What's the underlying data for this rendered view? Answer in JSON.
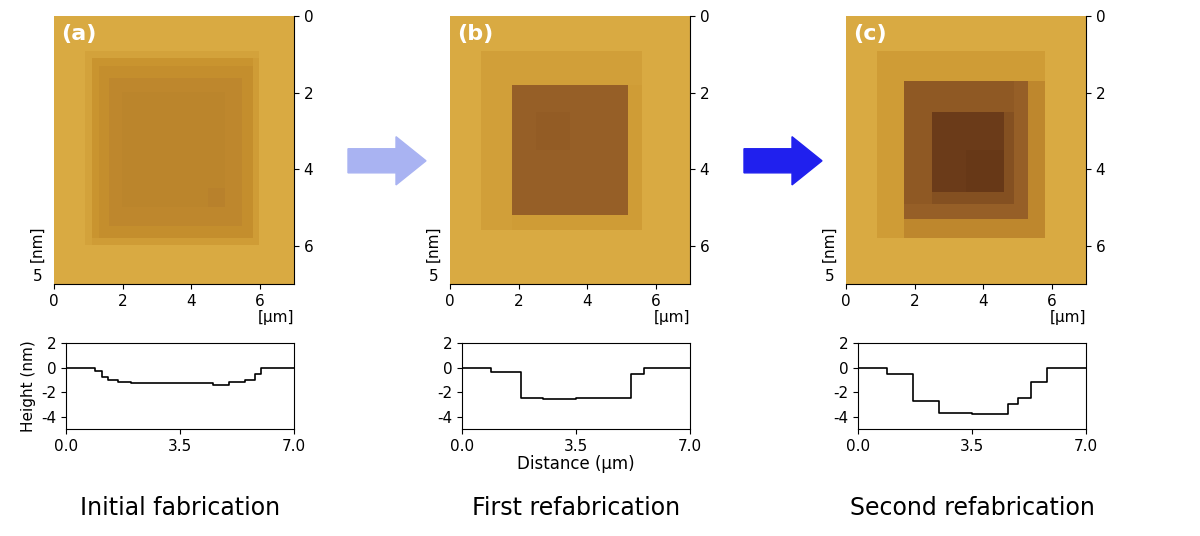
{
  "chart_data": [
    {
      "type": "line",
      "panel": "(a)",
      "caption": "Initial fabrication",
      "image": {
        "type": "heatmap",
        "xlim": [
          0,
          7
        ],
        "xticks": [
          0,
          2,
          4,
          6
        ],
        "x_label": "[µm]",
        "ylim": [
          7,
          0
        ],
        "yticks": [
          0,
          2,
          4,
          6
        ],
        "z_label": "[nm]",
        "zticks": [
          5
        ]
      },
      "y_label": "Height (nm)",
      "x": [
        0,
        0.9,
        1.1,
        1.3,
        1.6,
        2.0,
        2.5,
        3.0,
        3.5,
        4.0,
        4.5,
        5.0,
        5.5,
        5.8,
        6.0,
        7.0
      ],
      "values": [
        0,
        -0.3,
        -0.8,
        -1.0,
        -1.2,
        -1.3,
        -1.3,
        -1.3,
        -1.3,
        -1.3,
        -1.4,
        -1.2,
        -1.0,
        -0.5,
        0,
        0
      ],
      "xlim": [
        0,
        7
      ],
      "xticks": [
        {
          "value": 0,
          "label": "0.0"
        },
        {
          "value": 3.5,
          "label": "3.5"
        },
        {
          "value": 7,
          "label": "7.0"
        }
      ],
      "ylim": [
        -5,
        2
      ],
      "yticks": [
        -4,
        -2,
        0,
        2
      ],
      "color": "#000000"
    },
    {
      "type": "line",
      "panel": "(b)",
      "caption": "First refabrication",
      "image": {
        "type": "heatmap",
        "xlim": [
          0,
          7
        ],
        "xticks": [
          0,
          2,
          4,
          6
        ],
        "x_label": "[µm]",
        "ylim": [
          7,
          0
        ],
        "yticks": [
          0,
          2,
          4,
          6
        ],
        "z_label": "[nm]",
        "zticks": [
          5
        ]
      },
      "x_label": "Distance (µm)",
      "x": [
        0,
        0.9,
        1.8,
        2.5,
        3.5,
        4.5,
        5.2,
        5.6,
        7.0
      ],
      "values": [
        0,
        -0.4,
        -2.5,
        -2.6,
        -2.5,
        -2.5,
        -0.5,
        0,
        0
      ],
      "xlim": [
        0,
        7
      ],
      "xticks": [
        {
          "value": 0,
          "label": "0.0"
        },
        {
          "value": 3.5,
          "label": "3.5"
        },
        {
          "value": 7,
          "label": "7.0"
        }
      ],
      "ylim": [
        -5,
        2
      ],
      "yticks": [
        -4,
        -2,
        0,
        2
      ],
      "color": "#000000"
    },
    {
      "type": "line",
      "panel": "(c)",
      "caption": "Second refabrication",
      "image": {
        "type": "heatmap",
        "xlim": [
          0,
          7
        ],
        "xticks": [
          0,
          2,
          4,
          6
        ],
        "x_label": "[µm]",
        "ylim": [
          7,
          0
        ],
        "yticks": [
          0,
          2,
          4,
          6
        ],
        "z_label": "[nm]",
        "zticks": [
          5
        ]
      },
      "x": [
        0,
        0.9,
        1.7,
        2.5,
        3.5,
        4.6,
        4.9,
        5.3,
        5.8,
        7.0
      ],
      "values": [
        0,
        -0.5,
        -2.7,
        -3.7,
        -3.8,
        -3.0,
        -2.5,
        -1.2,
        0,
        0
      ],
      "xlim": [
        0,
        7
      ],
      "xticks": [
        {
          "value": 0,
          "label": "0.0"
        },
        {
          "value": 3.5,
          "label": "3.5"
        },
        {
          "value": 7,
          "label": "7.0"
        }
      ],
      "ylim": [
        -5,
        2
      ],
      "yticks": [
        -4,
        -2,
        0,
        2
      ],
      "color": "#000000"
    }
  ]
}
